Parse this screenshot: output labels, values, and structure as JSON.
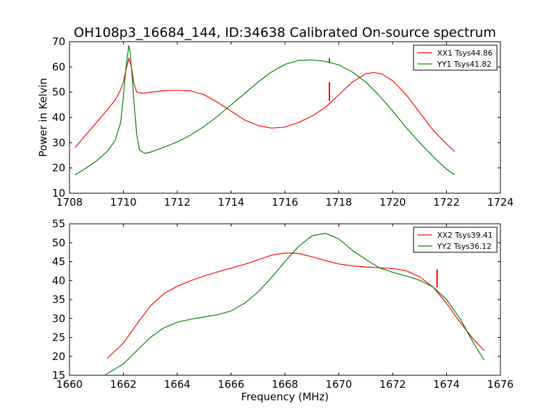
{
  "title": "OH108p3_16684_144, ID:34638 Calibrated On-source spectrum",
  "chart_data": [
    {
      "type": "line",
      "xlim": [
        1708,
        1724
      ],
      "ylim": [
        10,
        70
      ],
      "xticks": [
        1708,
        1710,
        1712,
        1714,
        1716,
        1718,
        1720,
        1722,
        1724
      ],
      "yticks": [
        10,
        20,
        30,
        40,
        50,
        60,
        70
      ],
      "xlabel": "",
      "ylabel": "Power in Kelvin",
      "legend_position": "top-right",
      "series": [
        {
          "name": "XX1 Tsys44.86",
          "color": "#ff0000",
          "x": [
            1708.2,
            1708.6,
            1709.0,
            1709.4,
            1709.7,
            1709.9,
            1710.0,
            1710.1,
            1710.2,
            1710.3,
            1710.4,
            1710.5,
            1710.7,
            1711.0,
            1711.5,
            1712.0,
            1712.5,
            1713.0,
            1713.5,
            1714.0,
            1714.5,
            1715.0,
            1715.5,
            1716.0,
            1716.5,
            1717.0,
            1717.5,
            1718.0,
            1718.5,
            1719.0,
            1719.3,
            1719.6,
            1720.0,
            1720.5,
            1721.0,
            1721.5,
            1722.0,
            1722.3
          ],
          "y": [
            28,
            33,
            38,
            43,
            47,
            51,
            54,
            59,
            63.5,
            60,
            53,
            50,
            49.6,
            50,
            50.6,
            50.8,
            50.5,
            49,
            46,
            42.5,
            39,
            36.8,
            35.8,
            36.2,
            38,
            40.5,
            44,
            49,
            54,
            57.3,
            57.8,
            57.2,
            54.5,
            49,
            42,
            35,
            29.5,
            26.5
          ]
        },
        {
          "name": "YY1 Tsys41.82",
          "color": "#008000",
          "x": [
            1708.2,
            1708.6,
            1709.0,
            1709.4,
            1709.7,
            1709.9,
            1710.0,
            1710.1,
            1710.2,
            1710.25,
            1710.3,
            1710.4,
            1710.5,
            1710.6,
            1710.8,
            1711.0,
            1711.5,
            1712.0,
            1712.5,
            1713.0,
            1713.5,
            1714.0,
            1714.5,
            1715.0,
            1715.5,
            1716.0,
            1716.5,
            1717.0,
            1717.5,
            1718.0,
            1718.5,
            1719.0,
            1719.5,
            1720.0,
            1720.5,
            1721.0,
            1721.5,
            1722.0,
            1722.3
          ],
          "y": [
            17.2,
            19.8,
            22.8,
            26.5,
            31,
            38,
            48,
            60,
            68.5,
            66,
            60,
            45,
            33,
            27,
            25.8,
            26.2,
            28.2,
            30.3,
            33,
            36.5,
            40.5,
            45,
            49.5,
            54,
            58,
            61,
            62.6,
            62.8,
            62.2,
            60.8,
            58,
            54,
            48.7,
            42.5,
            36,
            30,
            24.5,
            19.5,
            17.3
          ]
        }
      ],
      "spikes": [
        {
          "color": "#ff0000",
          "x": 1717.65,
          "y_from": 46.5,
          "y_to": 54
        },
        {
          "color": "#008000",
          "x": 1717.65,
          "y_from": 61.5,
          "y_to": 63.5
        }
      ]
    },
    {
      "type": "line",
      "xlim": [
        1660,
        1676
      ],
      "ylim": [
        15,
        55
      ],
      "xticks": [
        1660,
        1662,
        1664,
        1666,
        1668,
        1670,
        1672,
        1674,
        1676
      ],
      "yticks": [
        15,
        20,
        25,
        30,
        35,
        40,
        45,
        50,
        55
      ],
      "xlabel": "Frequency (MHz)",
      "ylabel": "",
      "legend_position": "top-right",
      "series": [
        {
          "name": "XX2 Tsys39.41",
          "color": "#ff0000",
          "x": [
            1661.4,
            1662.0,
            1662.5,
            1663.0,
            1663.5,
            1664.0,
            1664.5,
            1665.0,
            1665.5,
            1666.0,
            1666.5,
            1667.0,
            1667.5,
            1668.0,
            1668.5,
            1669.0,
            1669.5,
            1670.0,
            1670.5,
            1671.0,
            1671.5,
            1672.0,
            1672.5,
            1673.0,
            1673.5,
            1674.0,
            1674.5,
            1675.0,
            1675.4
          ],
          "y": [
            19.5,
            23.5,
            28.5,
            33.3,
            36.5,
            38.5,
            40,
            41.2,
            42.3,
            43.3,
            44.3,
            45.5,
            46.7,
            47.3,
            47.2,
            46.3,
            45.3,
            44.4,
            43.9,
            43.6,
            43.4,
            43.2,
            42.6,
            41,
            38.3,
            34,
            29,
            24.5,
            21.5
          ]
        },
        {
          "name": "YY2 Tsys36.12",
          "color": "#008000",
          "x": [
            1661.3,
            1662.0,
            1662.5,
            1663.0,
            1663.5,
            1664.0,
            1664.5,
            1665.0,
            1665.5,
            1666.0,
            1666.5,
            1667.0,
            1667.5,
            1668.0,
            1668.5,
            1669.0,
            1669.5,
            1670.0,
            1670.5,
            1671.0,
            1671.5,
            1672.0,
            1672.5,
            1673.0,
            1673.5,
            1674.0,
            1674.5,
            1675.0,
            1675.4
          ],
          "y": [
            15,
            18,
            21.5,
            25,
            27.5,
            29,
            29.8,
            30.4,
            31,
            32,
            34,
            37,
            40.8,
            45,
            49,
            51.8,
            52.5,
            51,
            48,
            45.6,
            43.4,
            42.2,
            41.2,
            40.1,
            38.3,
            35,
            30,
            23.5,
            19
          ]
        }
      ],
      "spikes": [
        {
          "color": "#ff0000",
          "x": 1673.65,
          "y_from": 38.2,
          "y_to": 43
        }
      ]
    }
  ]
}
